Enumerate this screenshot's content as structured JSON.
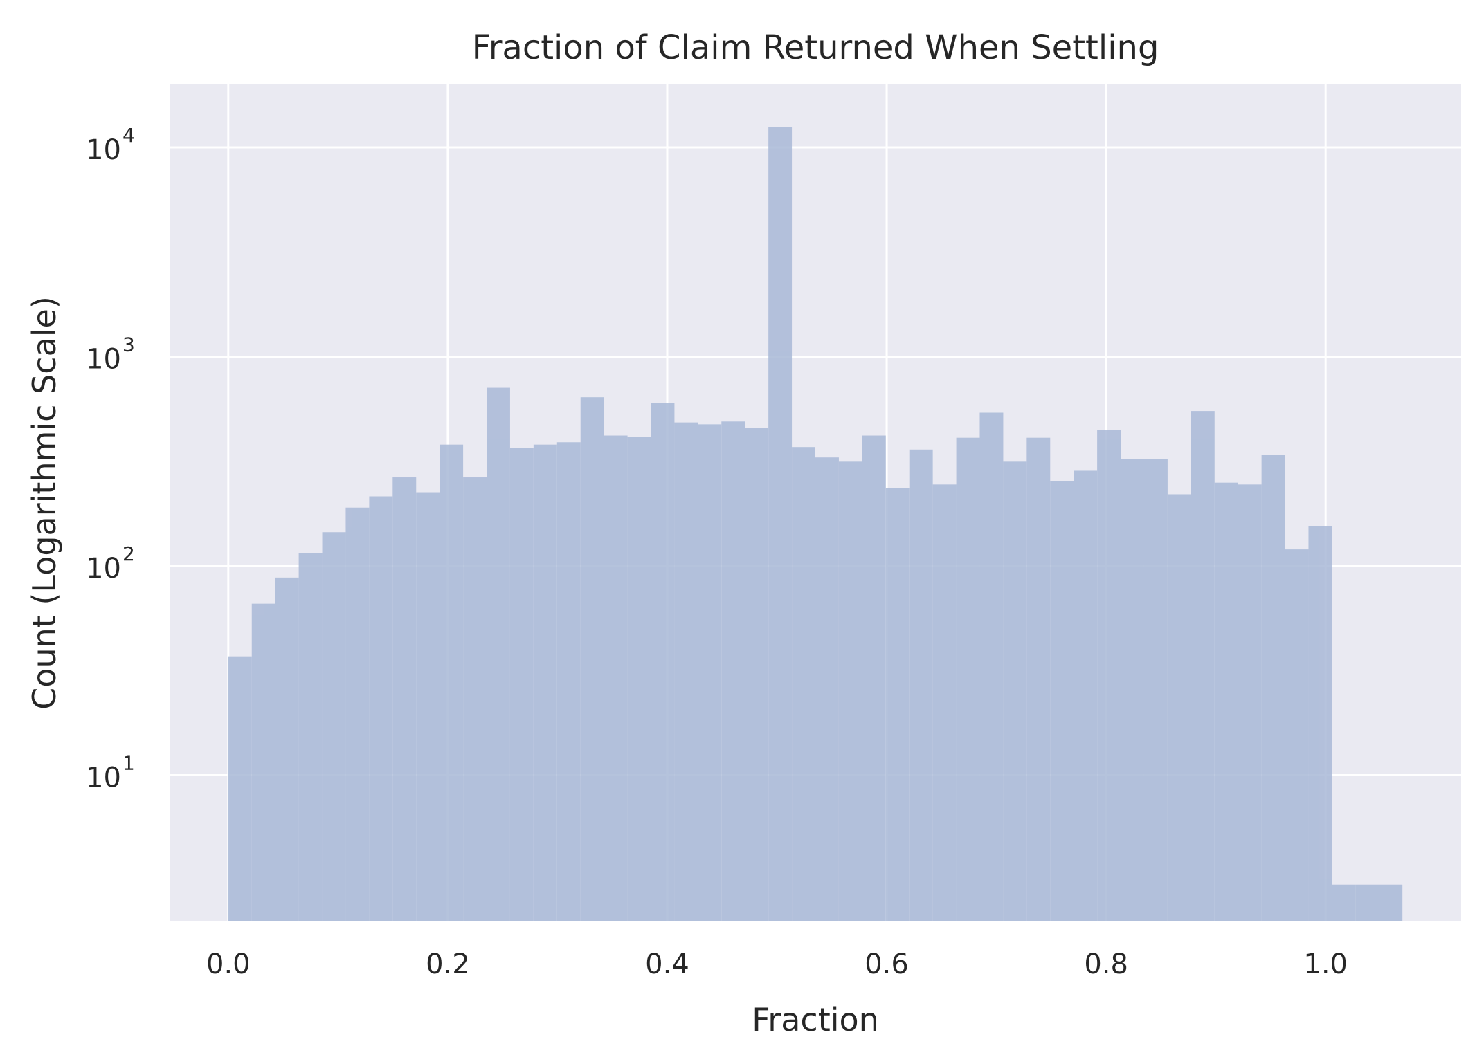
{
  "chart_data": {
    "type": "bar",
    "title": "Fraction of Claim Returned When Settling",
    "xlabel": "Fraction",
    "ylabel": "Count (Logarithmic Scale)",
    "yscale": "log",
    "grid": true,
    "xlim": [
      -0.0535,
      1.1235
    ],
    "ylim": [
      2,
      20000
    ],
    "x_ticks": [
      {
        "value": 0.0,
        "label": "0.0"
      },
      {
        "value": 0.2,
        "label": "0.2"
      },
      {
        "value": 0.4,
        "label": "0.4"
      },
      {
        "value": 0.6,
        "label": "0.6"
      },
      {
        "value": 0.8,
        "label": "0.8"
      },
      {
        "value": 1.0,
        "label": "1.0"
      }
    ],
    "y_ticks": [
      {
        "value": 10,
        "base": "10",
        "exp": "1"
      },
      {
        "value": 100,
        "base": "10",
        "exp": "2"
      },
      {
        "value": 1000,
        "base": "10",
        "exp": "3"
      },
      {
        "value": 10000,
        "base": "10",
        "exp": "4"
      }
    ],
    "bin_start": 0.0,
    "bin_width": 0.0214,
    "counts": [
      37,
      66,
      88,
      115,
      145,
      190,
      215,
      265,
      225,
      380,
      265,
      710,
      365,
      380,
      390,
      640,
      420,
      415,
      600,
      485,
      475,
      490,
      455,
      12500,
      370,
      330,
      315,
      420,
      235,
      360,
      245,
      410,
      540,
      315,
      410,
      255,
      285,
      445,
      325,
      325,
      220,
      550,
      250,
      245,
      340,
      120,
      155,
      3,
      3,
      3
    ],
    "colors": {
      "bar": "#a9b9d7",
      "plot_bg": "#eaeaf2",
      "grid": "#ffffff",
      "text": "#262626"
    }
  }
}
